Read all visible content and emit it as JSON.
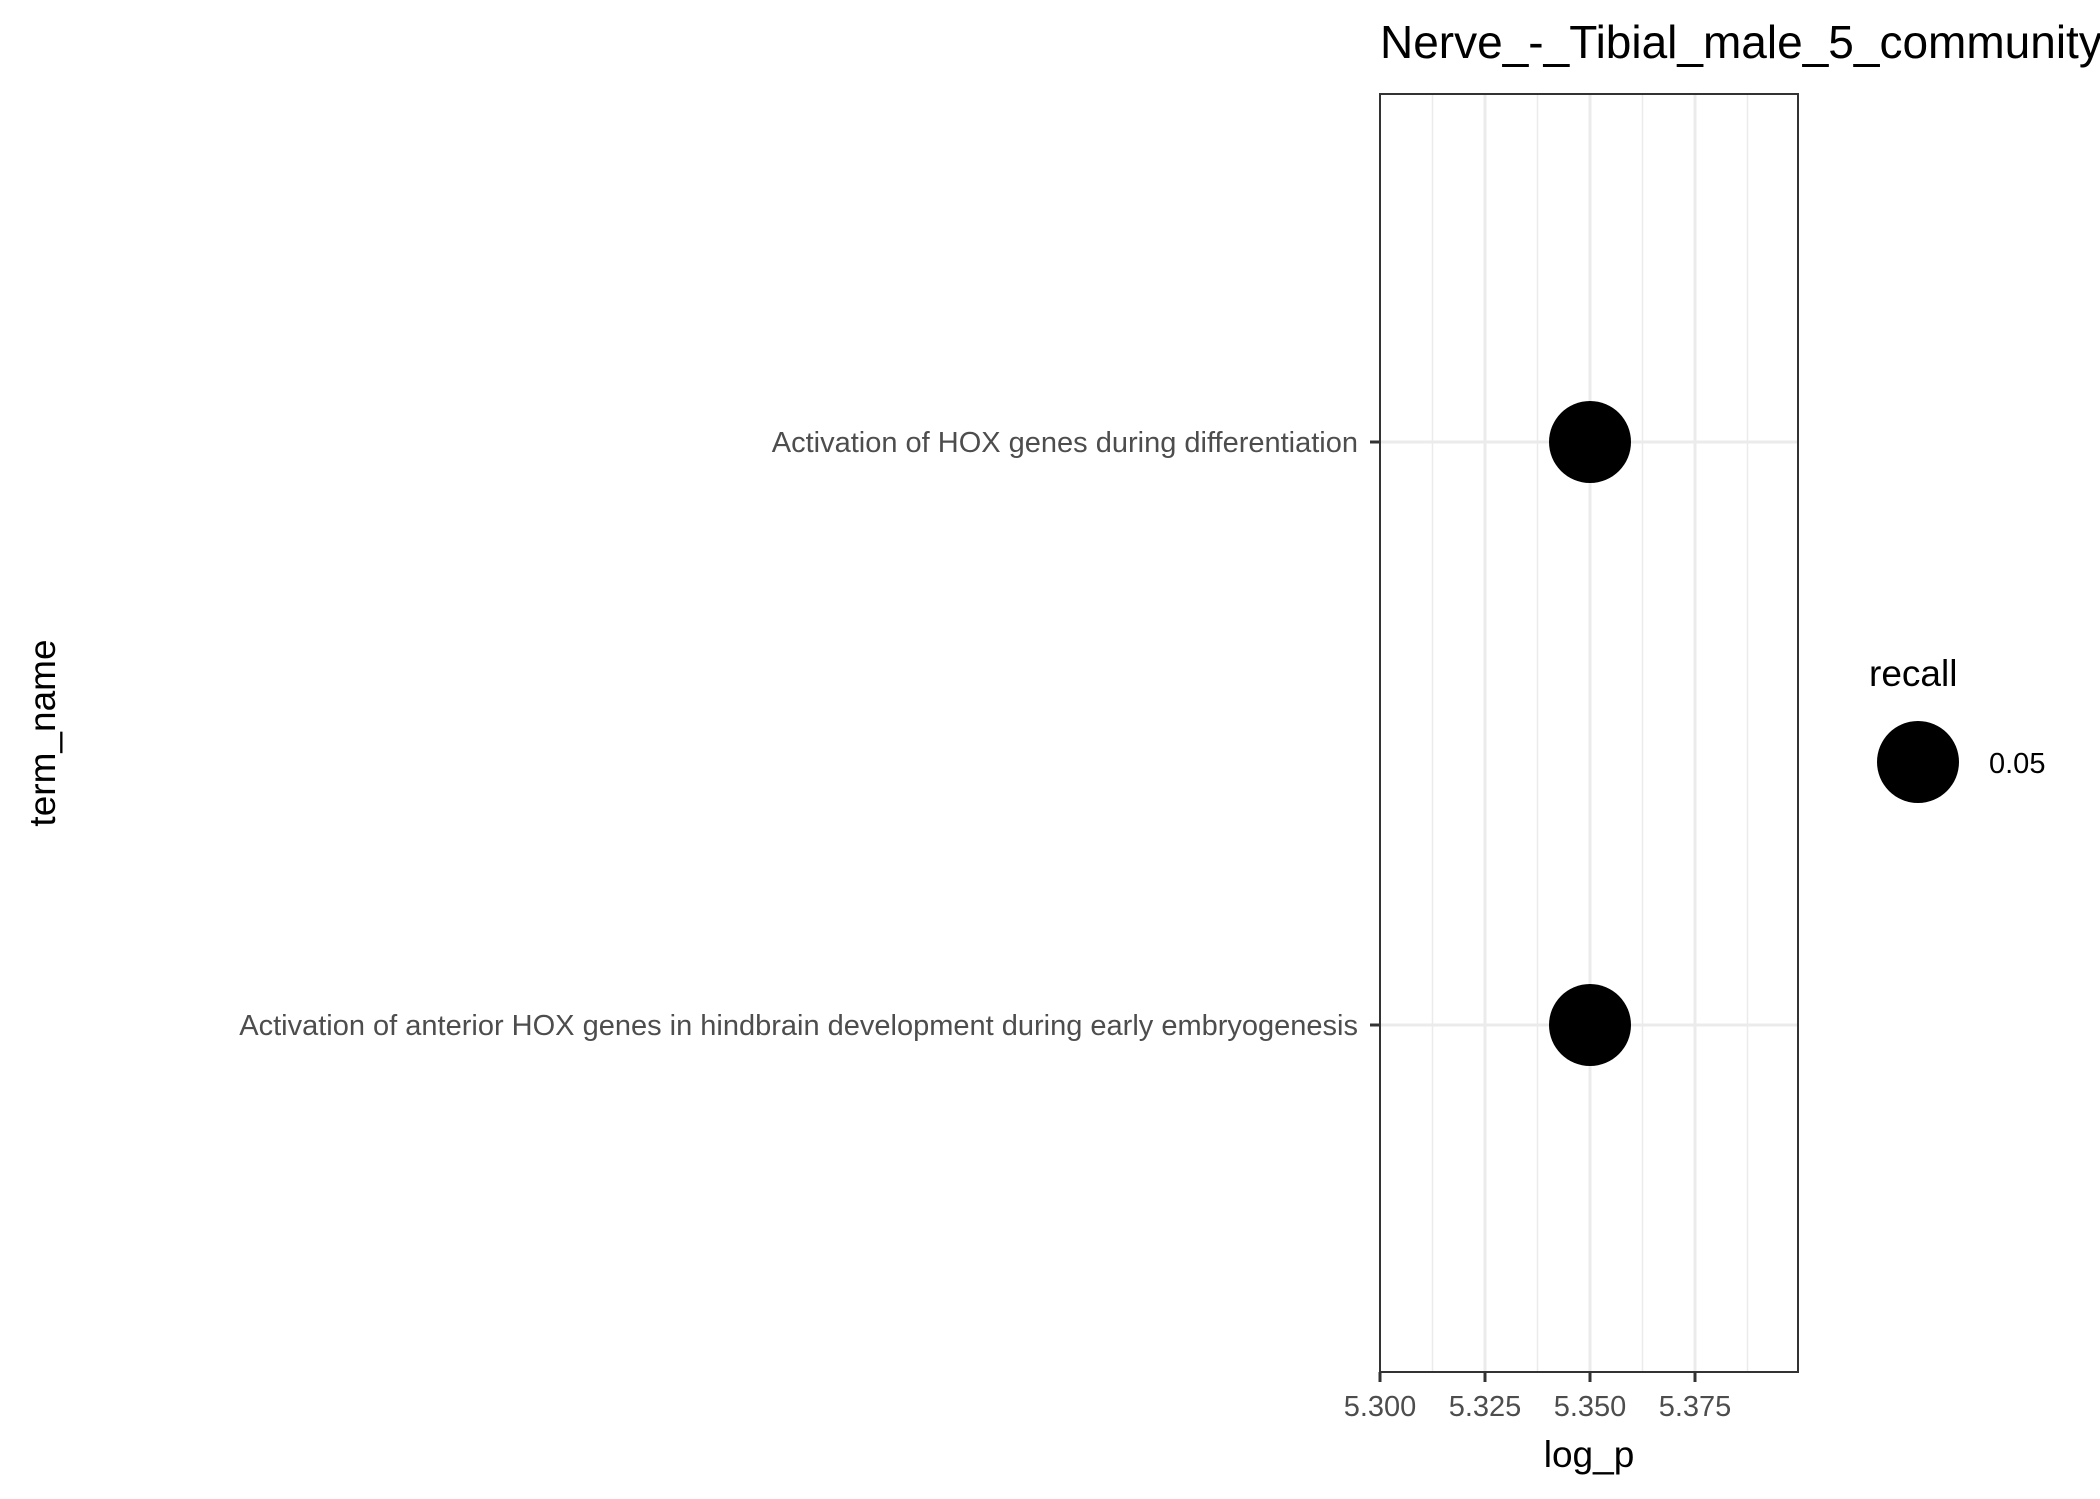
{
  "chart_data": {
    "type": "scatter",
    "title": "Nerve_-_Tibial_male_5_community",
    "xlabel": "log_p",
    "ylabel": "term_name",
    "xlim": [
      5.3,
      5.4
    ],
    "x_ticks": [
      "5.300",
      "5.325",
      "5.350",
      "5.375"
    ],
    "x_tick_values": [
      5.3,
      5.325,
      5.35,
      5.375
    ],
    "categories": [
      "Activation of HOX genes during differentiation",
      "Activation of anterior HOX genes in hindbrain development during early embryogenesis"
    ],
    "points": [
      {
        "term_name": "Activation of HOX genes during differentiation",
        "log_p": 5.35,
        "recall": 0.05
      },
      {
        "term_name": "Activation of anterior HOX genes in hindbrain development during early embryogenesis",
        "log_p": 5.35,
        "recall": 0.05
      }
    ],
    "legend": {
      "title": "recall",
      "entries": [
        {
          "label": "0.05",
          "value": 0.05
        }
      ],
      "position": "right"
    },
    "grid": true,
    "point_color": "#000000"
  }
}
